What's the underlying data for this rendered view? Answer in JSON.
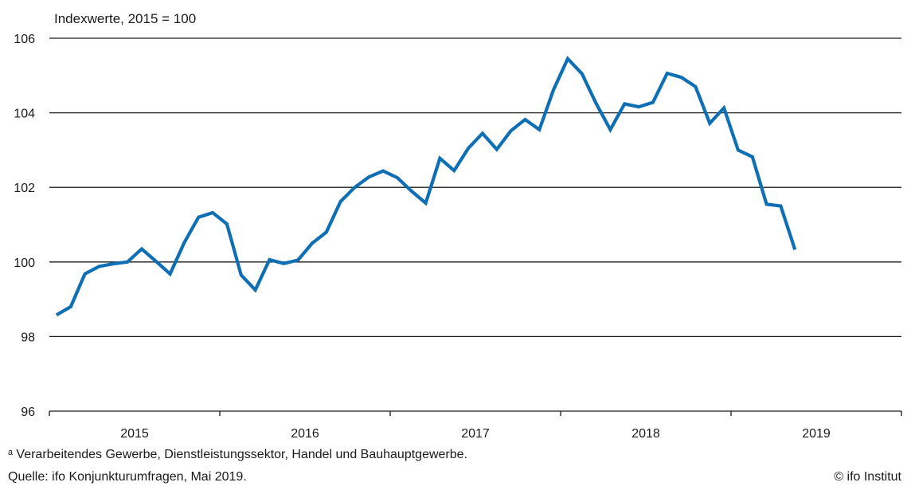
{
  "chart_data": {
    "type": "line",
    "unit_label": "Indexwerte, 2015 = 100",
    "ylim": [
      96,
      106
    ],
    "yticks": [
      96,
      98,
      100,
      102,
      104,
      106
    ],
    "xlim": [
      "2015-01",
      "2019-12"
    ],
    "x_labels": [
      "2015",
      "2016",
      "2017",
      "2018",
      "2019"
    ],
    "grid": true,
    "series": [
      {
        "color": "#0f6fb4",
        "x": [
          "2015-01",
          "2015-02",
          "2015-03",
          "2015-04",
          "2015-05",
          "2015-06",
          "2015-07",
          "2015-08",
          "2015-09",
          "2015-10",
          "2015-11",
          "2015-12",
          "2016-01",
          "2016-02",
          "2016-03",
          "2016-04",
          "2016-05",
          "2016-06",
          "2016-07",
          "2016-08",
          "2016-09",
          "2016-10",
          "2016-11",
          "2016-12",
          "2017-01",
          "2017-02",
          "2017-03",
          "2017-04",
          "2017-05",
          "2017-06",
          "2017-07",
          "2017-08",
          "2017-09",
          "2017-10",
          "2017-11",
          "2017-12",
          "2018-01",
          "2018-02",
          "2018-03",
          "2018-04",
          "2018-05",
          "2018-06",
          "2018-07",
          "2018-08",
          "2018-09",
          "2018-10",
          "2018-11",
          "2018-12",
          "2019-01",
          "2019-02",
          "2019-03",
          "2019-04",
          "2019-05"
        ],
        "values": [
          98.58,
          98.8,
          99.68,
          99.88,
          99.95,
          100.0,
          100.35,
          100.02,
          99.68,
          100.52,
          101.2,
          101.32,
          101.02,
          99.65,
          99.25,
          100.06,
          99.96,
          100.05,
          100.5,
          100.8,
          101.62,
          102.0,
          102.28,
          102.44,
          102.26,
          101.9,
          101.58,
          102.78,
          102.45,
          103.05,
          103.45,
          103.02,
          103.52,
          103.82,
          103.55,
          104.62,
          105.45,
          105.05,
          104.25,
          103.55,
          104.24,
          104.16,
          104.28,
          105.06,
          104.95,
          104.7,
          103.72,
          104.13,
          103.0,
          102.82,
          101.55,
          101.5,
          100.33
        ]
      }
    ]
  },
  "footnote": "ᵃ Verarbeitendes Gewerbe, Dienstleistungssektor, Handel und Bauhauptgewerbe.",
  "source": "Quelle: ifo Konjunkturumfragen, Mai 2019.",
  "copyright": "© ifo Institut"
}
